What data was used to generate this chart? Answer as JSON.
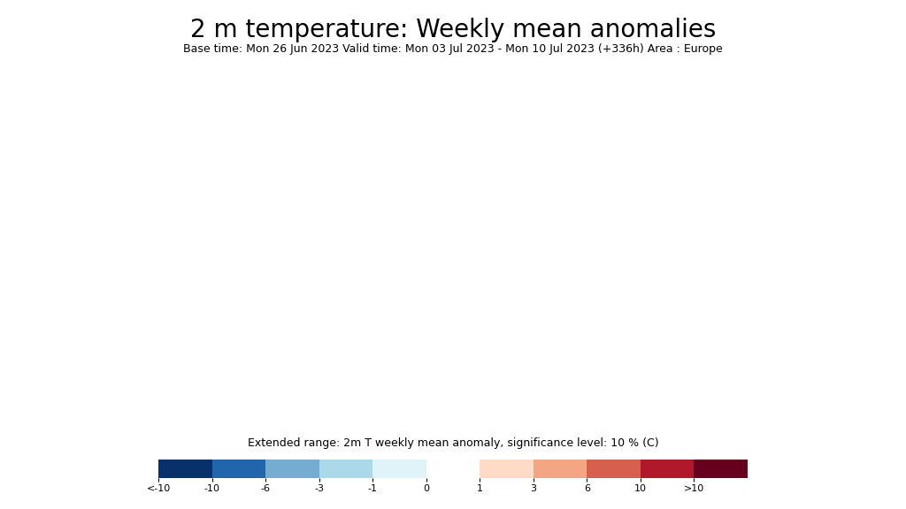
{
  "title": "2 m temperature: Weekly mean anomalies",
  "subtitle": "Base time: Mon 26 Jun 2023 Valid time: Mon 03 Jul 2023 - Mon 10 Jul 2023 (+336h) Area : Europe",
  "colorbar_label": "Extended range: 2m T weekly mean anomaly, significance level: 10 % (C)",
  "colorbar_ticks": [
    "<-10",
    "-10",
    "-6",
    "-3",
    "-1",
    "0",
    "1",
    "3",
    "6",
    "10",
    ">10"
  ],
  "colorbar_values": [
    -12,
    -10,
    -6,
    -3,
    -1,
    0,
    1,
    3,
    6,
    10,
    12
  ],
  "colors": [
    "#08306b",
    "#2166ac",
    "#74add1",
    "#abd9e9",
    "#e0f3f8",
    "#ffffff",
    "#fddbc7",
    "#f4a582",
    "#d6604d",
    "#b2182b",
    "#67001f"
  ],
  "background_color": "#ffffff",
  "fig_width": 10.24,
  "fig_height": 5.76,
  "title_fontsize": 20,
  "subtitle_fontsize": 9,
  "colorbar_label_fontsize": 9,
  "colorbar_tick_fontsize": 8
}
